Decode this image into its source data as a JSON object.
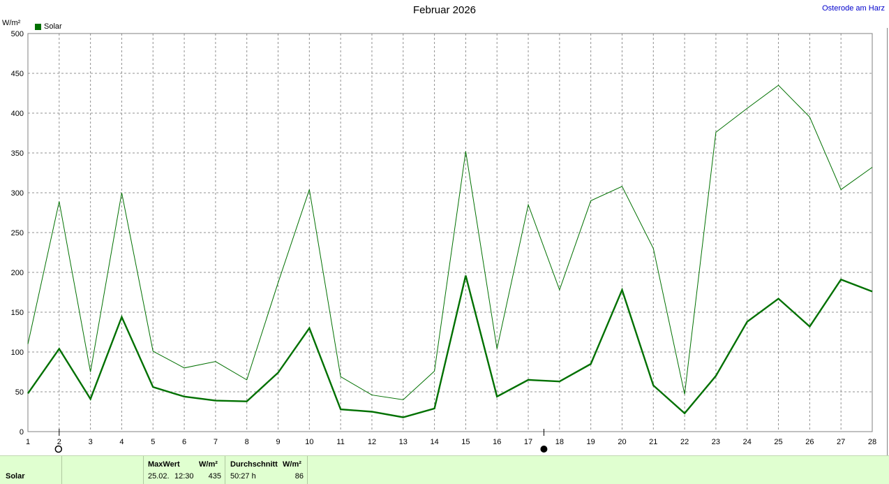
{
  "title": "Februar 2026",
  "location": "Osterode am Harz",
  "unit_label": "W/m²",
  "legend": [
    {
      "label": "Solar",
      "color": "#007000"
    }
  ],
  "chart_data": {
    "type": "line",
    "title": "Februar 2026",
    "ylabel": "W/m²",
    "xlabel": "",
    "x": [
      1,
      2,
      3,
      4,
      5,
      6,
      7,
      8,
      9,
      10,
      11,
      12,
      13,
      14,
      15,
      16,
      17,
      18,
      19,
      20,
      21,
      22,
      23,
      24,
      25,
      26,
      27,
      28
    ],
    "x_tick_labels": [
      "1",
      "2",
      "3",
      "4",
      "5",
      "6",
      "7",
      "8",
      "9",
      "10",
      "11",
      "12",
      "13",
      "14",
      "15",
      "16",
      "17",
      "18",
      "19",
      "20",
      "21",
      "22",
      "23",
      "24",
      "25",
      "26",
      "27",
      "28"
    ],
    "y_tick_labels": [
      "0",
      "50",
      "100",
      "150",
      "200",
      "250",
      "300",
      "350",
      "400",
      "450",
      "500"
    ],
    "ylim": [
      0,
      500
    ],
    "xlim": [
      1,
      28
    ],
    "grid": true,
    "legend_position": "top-left",
    "series": [
      {
        "name": "Solar",
        "role": "max",
        "color": "#007000",
        "values": [
          110,
          289,
          75,
          300,
          101,
          80,
          88,
          65,
          187,
          304,
          69,
          46,
          40,
          76,
          352,
          104,
          285,
          178,
          290,
          308,
          230,
          47,
          376,
          406,
          435,
          395,
          304,
          332
        ]
      },
      {
        "name": "Solar",
        "role": "average",
        "color": "#007000",
        "values": [
          48,
          104,
          41,
          144,
          56,
          44,
          39,
          38,
          74,
          130,
          28,
          25,
          18,
          29,
          196,
          44,
          65,
          63,
          85,
          178,
          58,
          23,
          70,
          138,
          167,
          132,
          191,
          176
        ]
      }
    ],
    "markers": [
      {
        "x": 2,
        "symbol": "empty-circle"
      },
      {
        "x": 17.5,
        "symbol": "filled-circle"
      }
    ]
  },
  "footer": {
    "series_label": "Solar",
    "max_header": "MaxWert",
    "max_unit": "W/m²",
    "max_date": "25.02.",
    "max_time": "12:30",
    "max_value": "435",
    "avg_header": "Durchschnitt",
    "avg_unit": "W/m²",
    "avg_duration": "50:27 h",
    "avg_value": "86"
  }
}
